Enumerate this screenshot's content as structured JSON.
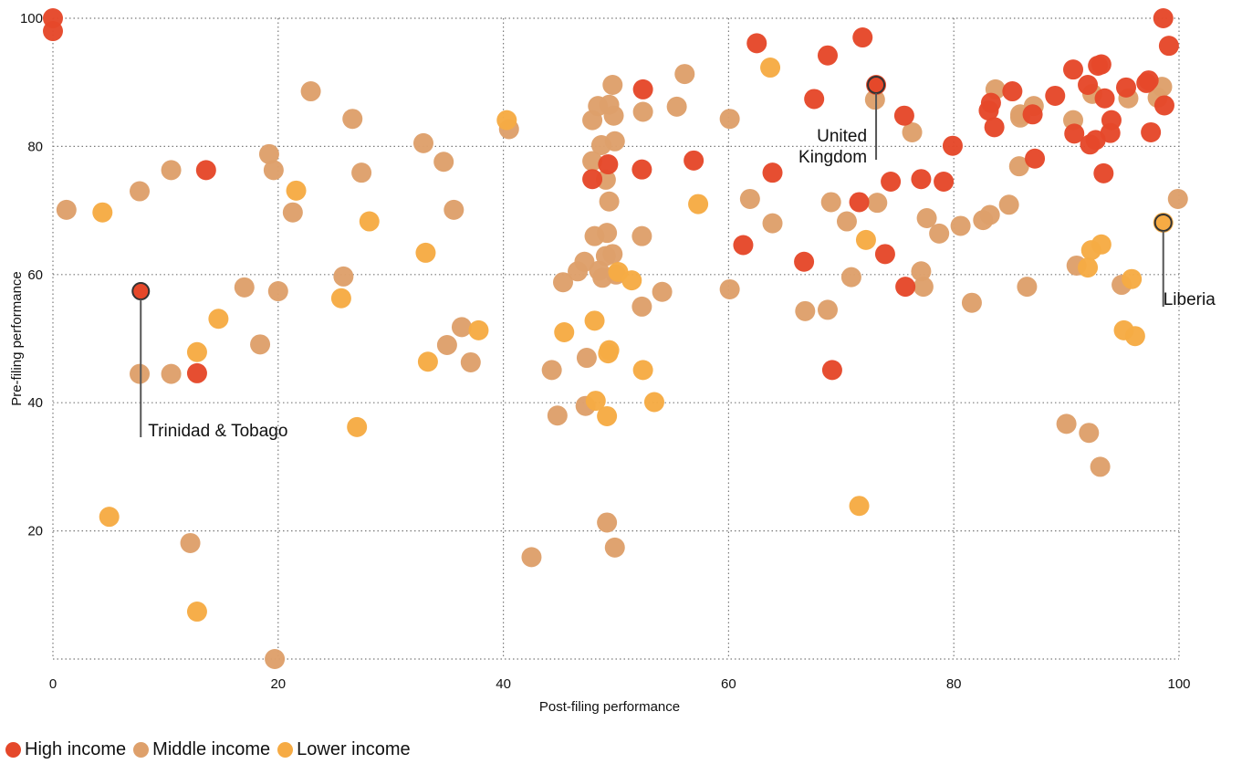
{
  "chart_data": {
    "type": "scatter",
    "xlabel": "Post-filing performance",
    "ylabel": "Pre-filing performance",
    "xlim": [
      0,
      100
    ],
    "ylim": [
      0,
      100
    ],
    "x_ticks": [
      "0",
      "20",
      "40",
      "60",
      "80",
      "100"
    ],
    "y_ticks": [
      "20",
      "40",
      "60",
      "80",
      "100"
    ],
    "grid": true,
    "legend_position": "bottom-left",
    "colors": {
      "high": "#e5482a",
      "middle": "#dea06b",
      "lower": "#f6ab44"
    },
    "series": [
      {
        "name": "High income",
        "key": "high",
        "points": [
          [
            0,
            100
          ],
          [
            0,
            98
          ],
          [
            13.6,
            76.3
          ],
          [
            12.8,
            44.6
          ],
          [
            47.9,
            74.9
          ],
          [
            49.3,
            77.2
          ],
          [
            52.3,
            76.4
          ],
          [
            52.4,
            88.9
          ],
          [
            56.9,
            77.8
          ],
          [
            61.3,
            64.6
          ],
          [
            62.5,
            96.1
          ],
          [
            63.9,
            75.9
          ],
          [
            66.7,
            62
          ],
          [
            67.6,
            87.4
          ],
          [
            68.8,
            94.2
          ],
          [
            69.2,
            45.1
          ],
          [
            71.6,
            71.3
          ],
          [
            71.9,
            97
          ],
          [
            73.1,
            89.6
          ],
          [
            73.9,
            63.2
          ],
          [
            74.4,
            74.5
          ],
          [
            75.6,
            84.8
          ],
          [
            75.7,
            58.1
          ],
          [
            77.1,
            74.9
          ],
          [
            79.1,
            74.5
          ],
          [
            79.9,
            80.1
          ],
          [
            83.1,
            85.6
          ],
          [
            83.3,
            86.8
          ],
          [
            83.6,
            83
          ],
          [
            85.2,
            88.6
          ],
          [
            87,
            85
          ],
          [
            87.2,
            78.1
          ],
          [
            89,
            87.9
          ],
          [
            90.6,
            92
          ],
          [
            90.7,
            82
          ],
          [
            91.9,
            89.6
          ],
          [
            92.1,
            80.3
          ],
          [
            92.6,
            81
          ],
          [
            92.8,
            92.6
          ],
          [
            93.1,
            92.8
          ],
          [
            93.3,
            75.8
          ],
          [
            93.4,
            87.5
          ],
          [
            93.9,
            82.1
          ],
          [
            94,
            84.1
          ],
          [
            95.3,
            89.2
          ],
          [
            97.1,
            89.9
          ],
          [
            97.3,
            90.3
          ],
          [
            97.5,
            82.2
          ],
          [
            98.6,
            100
          ],
          [
            98.7,
            86.4
          ],
          [
            99.1,
            95.7
          ]
        ]
      },
      {
        "name": "Middle income",
        "key": "middle",
        "points": [
          [
            1.2,
            70.1
          ],
          [
            7.7,
            73
          ],
          [
            7.7,
            44.5
          ],
          [
            10.5,
            76.3
          ],
          [
            10.5,
            44.5
          ],
          [
            12.2,
            18.1
          ],
          [
            17,
            58
          ],
          [
            18.4,
            49.1
          ],
          [
            19.2,
            78.8
          ],
          [
            19.6,
            76.3
          ],
          [
            20,
            57.4
          ],
          [
            19.7,
            0
          ],
          [
            21.3,
            69.7
          ],
          [
            22.9,
            88.6
          ],
          [
            25.8,
            59.7
          ],
          [
            26.6,
            84.3
          ],
          [
            27.4,
            75.9
          ],
          [
            32.9,
            80.5
          ],
          [
            34.7,
            77.6
          ],
          [
            35,
            49
          ],
          [
            35.6,
            70.1
          ],
          [
            36.3,
            51.8
          ],
          [
            37.1,
            46.3
          ],
          [
            40.5,
            82.7
          ],
          [
            42.5,
            15.9
          ],
          [
            44.3,
            45.1
          ],
          [
            44.8,
            38
          ],
          [
            45.3,
            58.8
          ],
          [
            46.6,
            60.5
          ],
          [
            47.2,
            62
          ],
          [
            47.3,
            39.5
          ],
          [
            47.4,
            47
          ],
          [
            47.9,
            84.1
          ],
          [
            47.9,
            77.7
          ],
          [
            48.1,
            66
          ],
          [
            48.4,
            86.3
          ],
          [
            48.5,
            60.6
          ],
          [
            48.7,
            80.2
          ],
          [
            48.8,
            59.5
          ],
          [
            49.1,
            62.9
          ],
          [
            49.1,
            74.8
          ],
          [
            49.2,
            21.3
          ],
          [
            49.2,
            66.5
          ],
          [
            49.4,
            86.5
          ],
          [
            49.4,
            71.4
          ],
          [
            49.7,
            89.6
          ],
          [
            49.7,
            63.2
          ],
          [
            49.8,
            84.8
          ],
          [
            49.9,
            80.8
          ],
          [
            49.9,
            17.4
          ],
          [
            50,
            60
          ],
          [
            52.3,
            66
          ],
          [
            52.3,
            55
          ],
          [
            52.4,
            85.4
          ],
          [
            54.1,
            57.3
          ],
          [
            55.4,
            86.2
          ],
          [
            56.1,
            91.3
          ],
          [
            60.1,
            84.3
          ],
          [
            60.1,
            57.7
          ],
          [
            61.9,
            71.8
          ],
          [
            63.9,
            68
          ],
          [
            66.8,
            54.3
          ],
          [
            68.8,
            54.5
          ],
          [
            69.1,
            71.3
          ],
          [
            70.5,
            68.3
          ],
          [
            70.9,
            59.6
          ],
          [
            73,
            87.3
          ],
          [
            73.2,
            71.2
          ],
          [
            76.3,
            82.2
          ],
          [
            77.1,
            60.5
          ],
          [
            77.3,
            58.1
          ],
          [
            77.6,
            68.8
          ],
          [
            78.7,
            66.4
          ],
          [
            80.6,
            67.6
          ],
          [
            81.6,
            55.6
          ],
          [
            82.6,
            68.5
          ],
          [
            83.2,
            69.3
          ],
          [
            83.7,
            88.9
          ],
          [
            84.9,
            70.9
          ],
          [
            85.8,
            76.9
          ],
          [
            85.9,
            85
          ],
          [
            85.9,
            84.5
          ],
          [
            86.5,
            58.1
          ],
          [
            87.1,
            86.3
          ],
          [
            90,
            36.7
          ],
          [
            90.6,
            84.1
          ],
          [
            90.9,
            61.4
          ],
          [
            92,
            35.3
          ],
          [
            92.3,
            88.2
          ],
          [
            93.0,
            30
          ],
          [
            94.9,
            58.4
          ],
          [
            95.5,
            87.5
          ],
          [
            98.1,
            87.6
          ],
          [
            98.5,
            89.3
          ],
          [
            99.9,
            71.8
          ]
        ]
      },
      {
        "name": "Lower income",
        "key": "lower",
        "points": [
          [
            4.4,
            69.7
          ],
          [
            5,
            22.2
          ],
          [
            12.8,
            7.4
          ],
          [
            12.8,
            47.9
          ],
          [
            14.7,
            53.1
          ],
          [
            21.6,
            73.1
          ],
          [
            25.6,
            56.3
          ],
          [
            27,
            36.2
          ],
          [
            28.1,
            68.3
          ],
          [
            33.1,
            63.4
          ],
          [
            33.3,
            46.4
          ],
          [
            37.8,
            51.3
          ],
          [
            40.3,
            84.1
          ],
          [
            45.4,
            51
          ],
          [
            48.1,
            52.8
          ],
          [
            48.2,
            40.3
          ],
          [
            49.2,
            37.9
          ],
          [
            49.3,
            47.7
          ],
          [
            49.4,
            48.2
          ],
          [
            50.2,
            60.4
          ],
          [
            51.4,
            59.1
          ],
          [
            52.4,
            45.1
          ],
          [
            53.4,
            40.1
          ],
          [
            57.3,
            71
          ],
          [
            63.7,
            92.3
          ],
          [
            71.6,
            23.9
          ],
          [
            72.2,
            65.4
          ],
          [
            91.9,
            61.1
          ],
          [
            92.2,
            63.8
          ],
          [
            93.1,
            64.7
          ],
          [
            95.1,
            51.3
          ],
          [
            95.8,
            59.3
          ],
          [
            96.1,
            50.4
          ],
          [
            98.6,
            68.1
          ]
        ]
      }
    ],
    "annotations": [
      {
        "label": "Trinidad & Tobago",
        "lines": [
          "Trinidad & Tobago"
        ],
        "x": 7.8,
        "y": 57.4,
        "color": "#e5482a",
        "side": "below"
      },
      {
        "label": "United Kingdom",
        "lines": [
          "United",
          "Kingdom"
        ],
        "x": 73.1,
        "y": 89.6,
        "color": "#e5482a",
        "side": "below-left"
      },
      {
        "label": "Liberia",
        "lines": [
          "Liberia"
        ],
        "x": 98.6,
        "y": 68.1,
        "color": "#f6ab44",
        "side": "below"
      }
    ]
  },
  "legend": {
    "items": [
      {
        "label": "High income",
        "color": "#e5482a"
      },
      {
        "label": "Middle income",
        "color": "#dea06b"
      },
      {
        "label": "Lower income",
        "color": "#f6ab44"
      }
    ]
  }
}
